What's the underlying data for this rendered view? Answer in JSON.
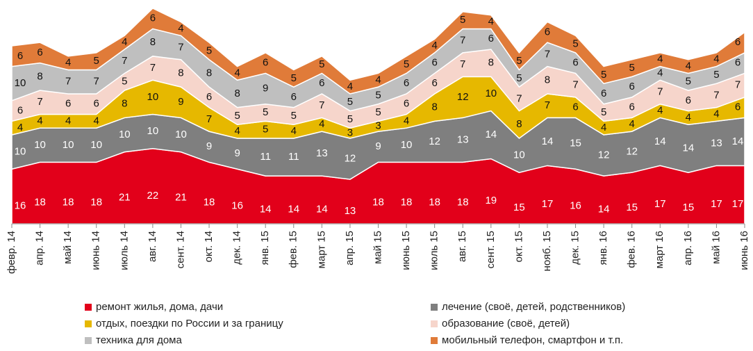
{
  "chart_data": {
    "type": "stacked_area",
    "categories": [
      "февр. 14",
      "апр. 14",
      "май 14",
      "июнь 14",
      "июль 14",
      "авг. 14",
      "сент. 14",
      "окт. 14",
      "дек. 14",
      "янв. 15",
      "фев. 15",
      "март 15",
      "апр. 15",
      "май 15",
      "июнь 15",
      "июль 15",
      "авг. 15",
      "сент. 15",
      "окт. 15",
      "нояб. 15",
      "дек. 15",
      "янв. 16",
      "фев. 16",
      "март 16",
      "апр. 16",
      "май 16",
      "июнь 16"
    ],
    "series": [
      {
        "name": "ремонт жилья, дома, дачи",
        "color": "#e2001a",
        "values": [
          16,
          18,
          18,
          18,
          21,
          22,
          21,
          18,
          16,
          14,
          14,
          14,
          13,
          18,
          18,
          18,
          18,
          19,
          15,
          17,
          16,
          14,
          15,
          17,
          15,
          17,
          17
        ]
      },
      {
        "name": "лечение (своё, детей, родственников)",
        "color": "#7f7f7f",
        "values": [
          10,
          10,
          10,
          10,
          10,
          10,
          10,
          9,
          9,
          11,
          11,
          13,
          12,
          9,
          10,
          12,
          13,
          14,
          10,
          14,
          15,
          12,
          12,
          14,
          14,
          13,
          14
        ]
      },
      {
        "name": "отдых, поездки по России и за границу",
        "color": "#e6b800",
        "values": [
          4,
          4,
          4,
          4,
          8,
          10,
          9,
          7,
          4,
          5,
          4,
          4,
          3,
          3,
          4,
          8,
          12,
          10,
          8,
          7,
          6,
          4,
          4,
          4,
          4,
          4,
          6
        ]
      },
      {
        "name": "образование (своё, детей)",
        "color": "#f6d5cb",
        "values": [
          6,
          7,
          6,
          6,
          5,
          7,
          8,
          6,
          5,
          5,
          5,
          7,
          5,
          5,
          6,
          6,
          7,
          8,
          7,
          8,
          7,
          5,
          6,
          7,
          6,
          7,
          7
        ]
      },
      {
        "name": "техника для дома",
        "color": "#bfbfbf",
        "values": [
          10,
          8,
          7,
          7,
          7,
          8,
          7,
          8,
          8,
          9,
          6,
          6,
          5,
          5,
          6,
          6,
          7,
          6,
          5,
          7,
          6,
          6,
          6,
          4,
          5,
          5,
          6
        ]
      },
      {
        "name": "мобильный телефон, смартфон и т.п.",
        "color": "#e07b39",
        "values": [
          6,
          6,
          4,
          5,
          4,
          6,
          4,
          5,
          4,
          6,
          5,
          5,
          4,
          4,
          5,
          4,
          5,
          4,
          5,
          6,
          5,
          5,
          5,
          4,
          4,
          4,
          6
        ]
      }
    ],
    "ylim": [
      0,
      64
    ]
  }
}
